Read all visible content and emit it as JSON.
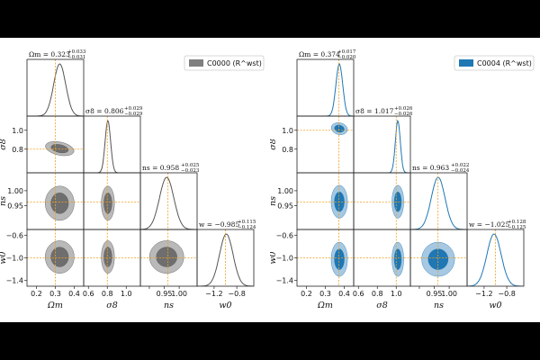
{
  "chart_data": [
    {
      "type": "corner",
      "legend": {
        "label": "C0000 (R^wst)",
        "color": "#7f7f7f",
        "placement": "top-right"
      },
      "params": [
        {
          "label": "Ω_m",
          "title_value": "Ω_m = 0.323 +0.033 −0.031",
          "truth": 0.3,
          "lim": [
            0.15,
            0.45
          ],
          "ticks": [
            0.2,
            0.3,
            0.4
          ],
          "ticklabels": [
            "0.2",
            "0.3",
            "0.4"
          ]
        },
        {
          "label": "σ_8",
          "title_value": "σ_8 = 0.806 +0.029 −0.029",
          "truth": 0.8,
          "lim": [
            0.55,
            1.15
          ],
          "ticks": [
            0.6,
            0.8,
            1.0
          ],
          "ticklabels": [
            "0.6",
            "0.8",
            "1.0"
          ]
        },
        {
          "label": "n_s",
          "title_value": "ns = 0.958 +0.025 −0.023",
          "truth": 0.9624,
          "lim": [
            0.87,
            1.06
          ],
          "ticks": [
            0.9,
            0.95,
            1.0
          ],
          "ticklabels": [
            "",
            "0.95",
            "1.00"
          ]
        },
        {
          "label": "w_0",
          "title_value": "w = −0.985 +0.115 −0.124",
          "truth": -1.0,
          "lim": [
            -1.5,
            -0.5
          ],
          "ticks": [
            -1.2,
            -0.8
          ],
          "ticklabels": [
            "−1.2",
            "−0.8"
          ]
        }
      ],
      "mean": [
        0.323,
        0.806,
        0.958,
        -0.985
      ],
      "sigma": [
        0.032,
        0.029,
        0.024,
        0.12
      ],
      "title_lines": [
        {
          "main": "Ωm = 0.323",
          "sup": "+0.033",
          "sub": "−0.031"
        },
        {
          "main": "σ8 = 0.806",
          "sup": "+0.029",
          "sub": "−0.029"
        },
        {
          "main": "ns = 0.958",
          "sup": "+0.025",
          "sub": "−0.023"
        },
        {
          "main": "w = −0.985",
          "sup": "+0.115",
          "sub": "−0.124"
        }
      ],
      "axis_labels": [
        "Ωm",
        "σ8",
        "ns",
        "w0"
      ],
      "ytick_labels": {
        "σ8": [
          "0.8",
          "1.0"
        ],
        "ns": [
          "0.95",
          "1.00"
        ],
        "w0": [
          "−1.4",
          "−1.0",
          "−0.6"
        ]
      },
      "colors": {
        "inner": "#6e6e6e",
        "outer": "#b9b9b9",
        "line": "#555555",
        "truth": "#f0a020"
      }
    },
    {
      "type": "corner",
      "legend": {
        "label": "C0004 (R^wst)",
        "color": "#1f77b4",
        "placement": "top-right"
      },
      "params": [
        {
          "label": "Ω_m",
          "title_value": "Ω_m = 0.374 +0.017 −0.020",
          "truth": 0.3711,
          "lim": [
            0.15,
            0.45
          ],
          "ticks": [
            0.2,
            0.3,
            0.4
          ],
          "ticklabels": [
            "0.2",
            "0.3",
            "0.4"
          ]
        },
        {
          "label": "σ_8",
          "title_value": "σ_8 = 1.017 +0.026 −0.026",
          "truth": 1.0,
          "lim": [
            0.55,
            1.15
          ],
          "ticks": [
            0.6,
            0.8,
            1.0
          ],
          "ticklabels": [
            "0.6",
            "0.8",
            "1.0"
          ]
        },
        {
          "label": "n_s",
          "title_value": "ns = 0.963 +0.022 −0.024",
          "truth": 0.9624,
          "lim": [
            0.87,
            1.06
          ],
          "ticks": [
            0.9,
            0.95,
            1.0
          ],
          "ticklabels": [
            "",
            "0.95",
            "1.00"
          ]
        },
        {
          "label": "w_0",
          "title_value": "w = −1.025 +0.128 −0.125",
          "truth": -1.0,
          "lim": [
            -1.5,
            -0.5
          ],
          "ticks": [
            -1.2,
            -0.8
          ],
          "ticklabels": [
            "−1.2",
            "−0.8"
          ]
        }
      ],
      "mean": [
        0.374,
        1.017,
        0.963,
        -1.025
      ],
      "sigma": [
        0.018,
        0.026,
        0.023,
        0.126
      ],
      "title_lines": [
        {
          "main": "Ωm = 0.374",
          "sup": "+0.017",
          "sub": "−0.020"
        },
        {
          "main": "σ8 = 1.017",
          "sup": "+0.026",
          "sub": "−0.026"
        },
        {
          "main": "ns = 0.963",
          "sup": "+0.022",
          "sub": "−0.024"
        },
        {
          "main": "w = −1.025",
          "sup": "+0.128",
          "sub": "−0.125"
        }
      ],
      "axis_labels": [
        "Ωm",
        "σ8",
        "ns",
        "w0"
      ],
      "ytick_labels": {
        "σ8": [
          "0.8",
          "1.0"
        ],
        "ns": [
          "0.95",
          "1.00"
        ],
        "w0": [
          "−1.4",
          "−1.0",
          "−0.6"
        ]
      },
      "colors": {
        "inner": "#1f77b4",
        "outer": "#a6c8e2",
        "line": "#1f77b4",
        "truth": "#f0a020"
      }
    }
  ]
}
